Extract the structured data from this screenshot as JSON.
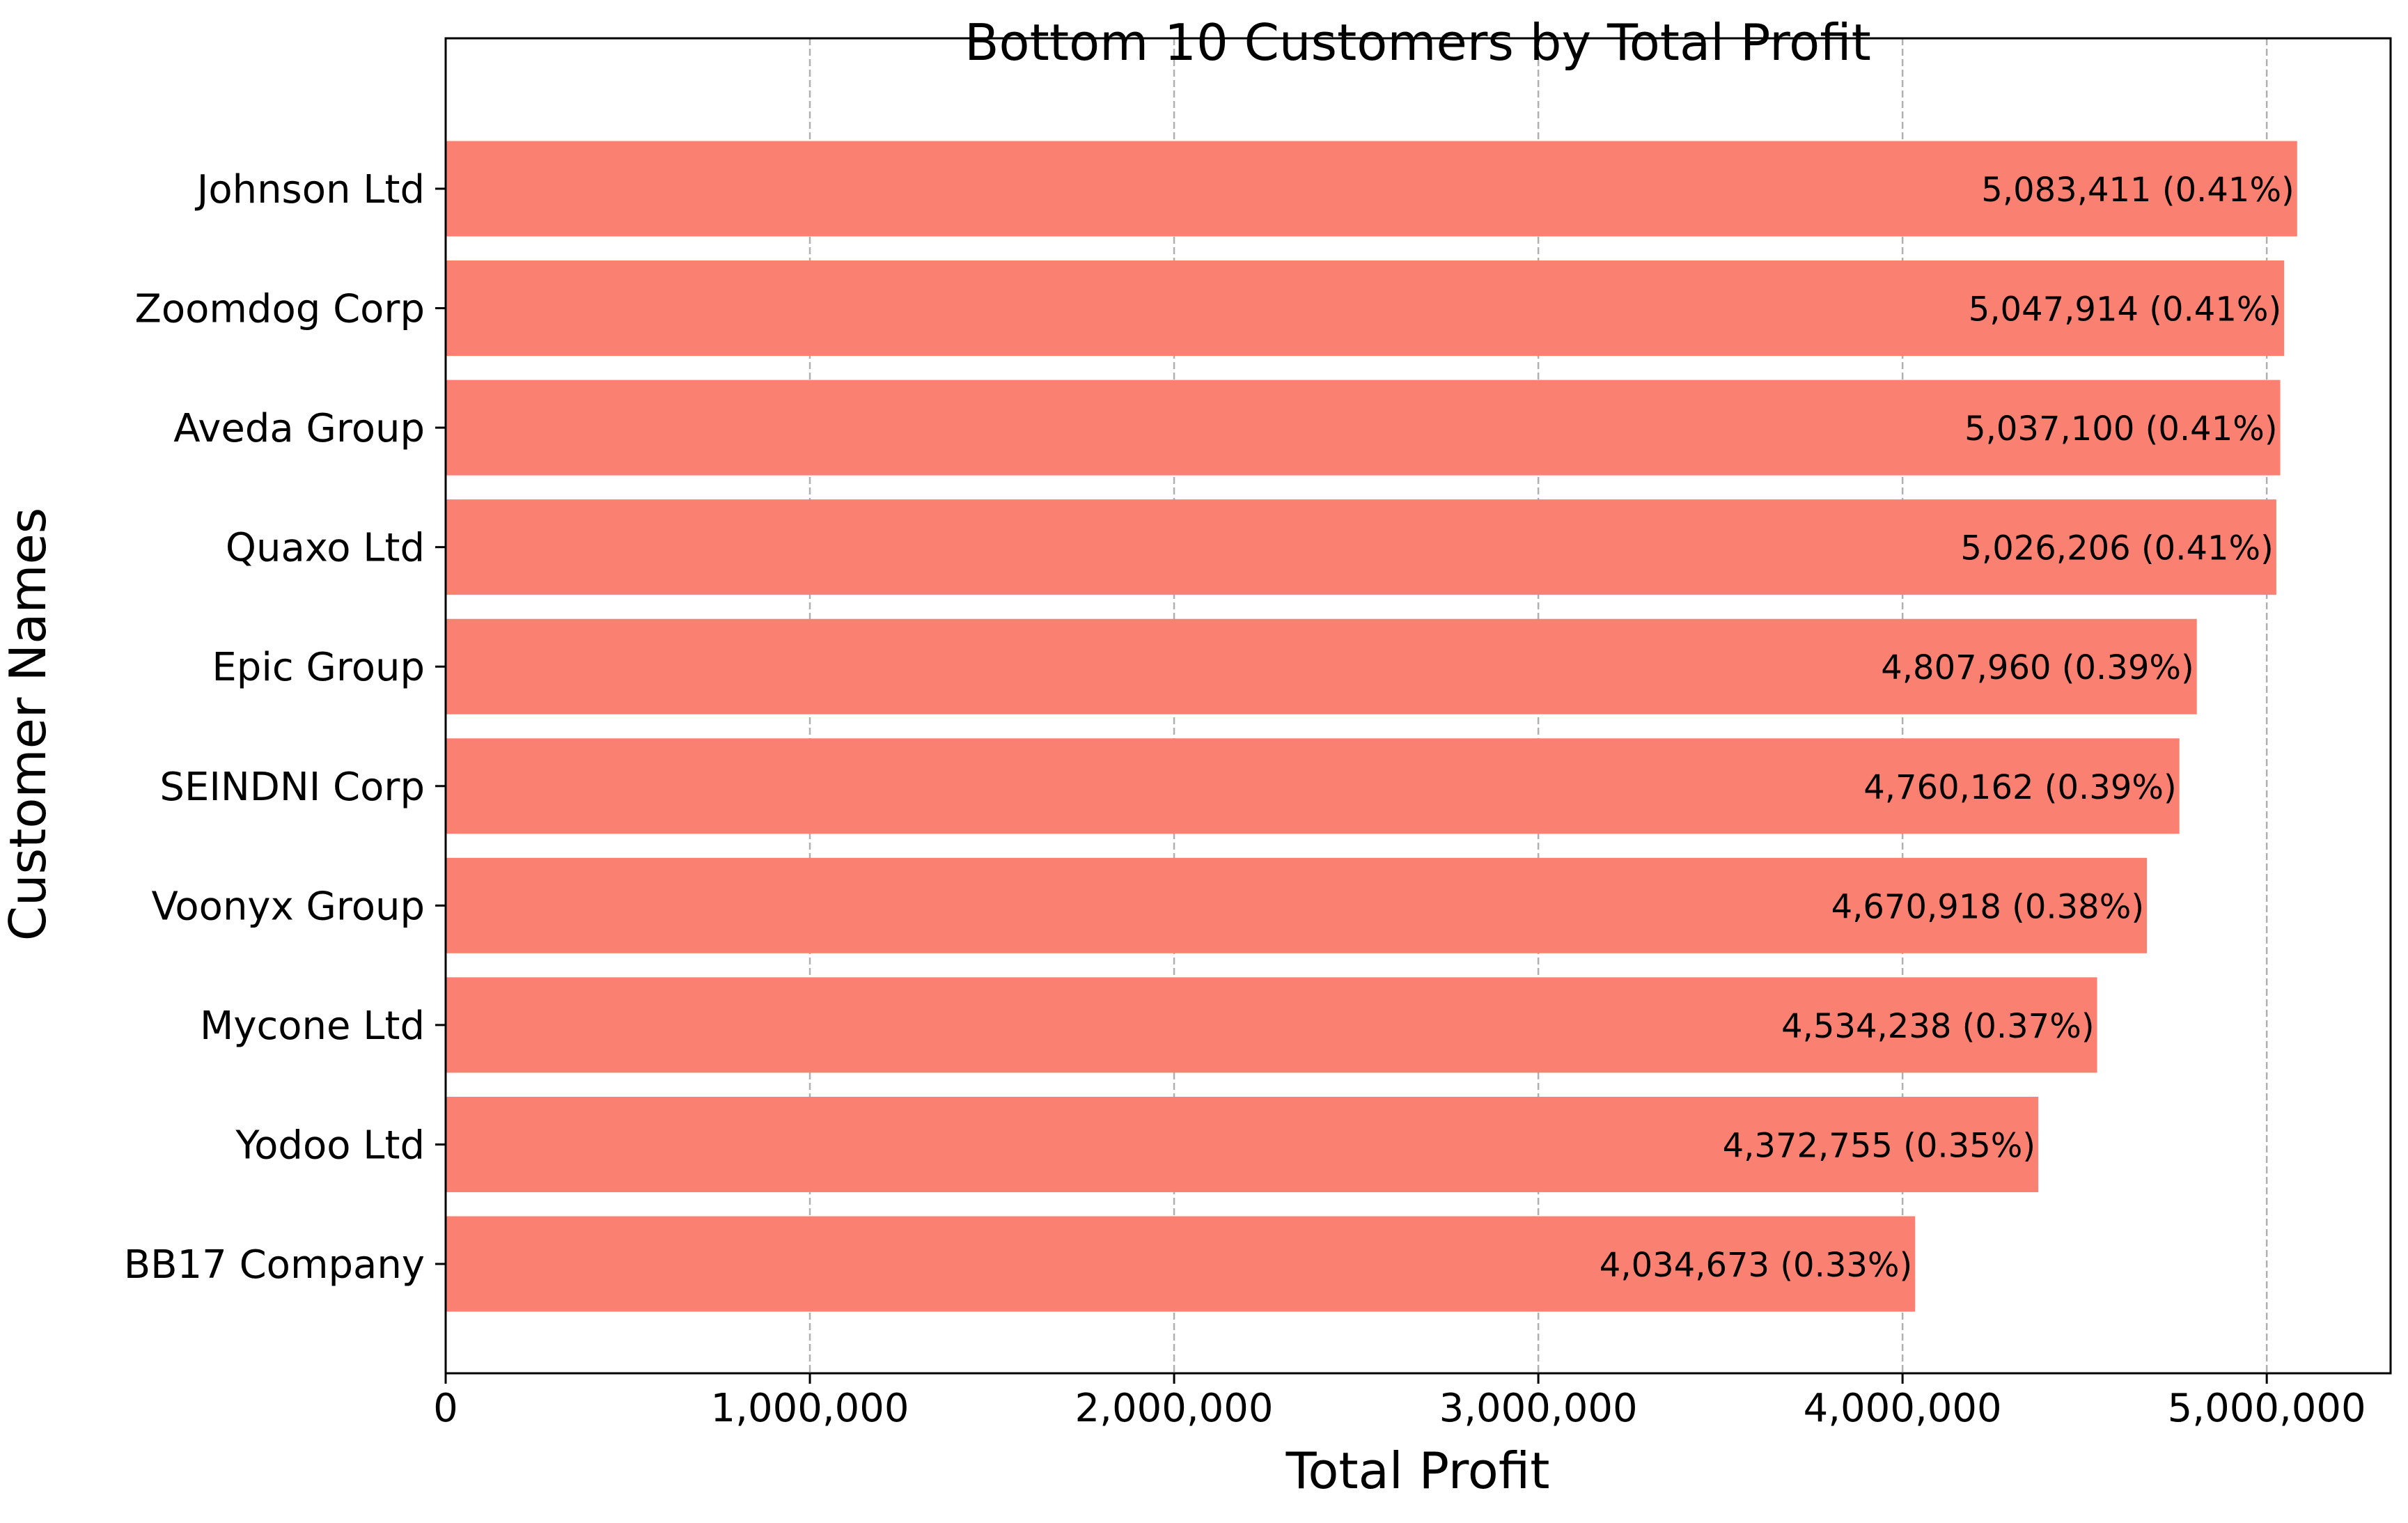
{
  "chart_data": {
    "type": "bar",
    "orientation": "horizontal",
    "title": "Bottom 10 Customers by Total Profit",
    "xlabel": "Total Profit",
    "ylabel": "Customer Names",
    "categories": [
      "Johnson Ltd",
      "Zoomdog Corp",
      "Aveda Group",
      "Quaxo Ltd",
      "Epic Group",
      "SEINDNI Corp",
      "Voonyx Group",
      "Mycone Ltd",
      "Yodoo Ltd",
      "BB17 Company"
    ],
    "values": [
      5083411,
      5047914,
      5037100,
      5026206,
      4807960,
      4760162,
      4670918,
      4534238,
      4372755,
      4034673
    ],
    "data_labels": [
      "5,083,411 (0.41%)",
      "5,047,914 (0.41%)",
      "5,037,100 (0.41%)",
      "5,026,206 (0.41%)",
      "4,807,960 (0.39%)",
      "4,760,162 (0.39%)",
      "4,670,918 (0.38%)",
      "4,534,238 (0.37%)",
      "4,372,755 (0.35%)",
      "4,034,673 (0.33%)"
    ],
    "xlim": [
      0,
      5340000
    ],
    "xticks": [
      0,
      1000000,
      2000000,
      3000000,
      4000000,
      5000000
    ],
    "xtick_labels": [
      "0",
      "1,000,000",
      "2,000,000",
      "3,000,000",
      "4,000,000",
      "5,000,000"
    ],
    "grid": "x-axis, dashed",
    "legend": "none",
    "bar_color": "#fa8072",
    "grid_color": "#b0b0b0",
    "text_color": "#000000"
  }
}
